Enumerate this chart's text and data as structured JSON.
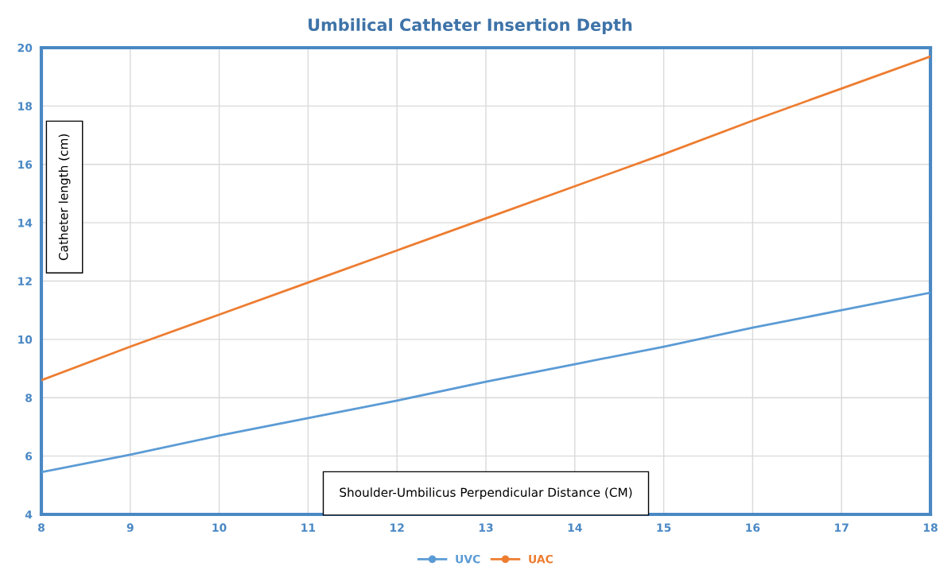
{
  "chart_data": {
    "type": "line",
    "title": "Umbilical Catheter Insertion Depth",
    "xlabel": "Shoulder-Umbilicus Perpendicular Distance (CM)",
    "ylabel": "Catheter length (cm)",
    "x": [
      8,
      9,
      10,
      11,
      12,
      13,
      14,
      15,
      16,
      17,
      18
    ],
    "series": [
      {
        "name": "UVC",
        "color": "#5b9bd5",
        "values": [
          5.45,
          6.05,
          6.7,
          7.3,
          7.9,
          8.55,
          9.15,
          9.75,
          10.4,
          11.0,
          11.6
        ]
      },
      {
        "name": "UAC",
        "color": "#ed7d31",
        "values": [
          8.6,
          9.75,
          10.85,
          11.95,
          13.05,
          14.15,
          15.25,
          16.35,
          17.5,
          18.6,
          19.7
        ]
      }
    ],
    "xlim": [
      8,
      18
    ],
    "xticks": [
      8,
      9,
      10,
      11,
      12,
      13,
      14,
      15,
      16,
      17,
      18
    ],
    "ylim": [
      4,
      20
    ],
    "yticks": [
      4,
      6,
      8,
      10,
      12,
      14,
      16,
      18,
      20
    ],
    "grid": true,
    "legend": "bottom"
  }
}
